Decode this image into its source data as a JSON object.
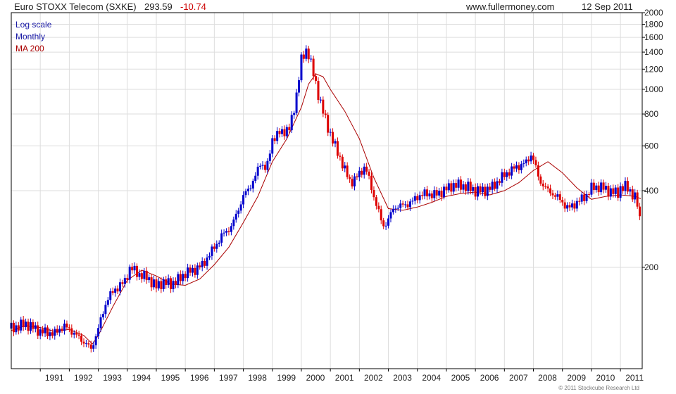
{
  "header": {
    "title": "Euro STOXX Telecom (SXKE)",
    "last_price": "293.59",
    "change": "-10.74",
    "website": "www.fullermoney.com",
    "date": "12 Sep 2011"
  },
  "legend": {
    "scale": "Log scale",
    "period": "Monthly",
    "ma": "MA 200"
  },
  "copyright": "© 2011 Stockcube Research Ltd",
  "colors": {
    "up": "#0000cc",
    "down": "#dd0000",
    "ma": "#aa0000",
    "grid": "#dddddd",
    "axis": "#000000",
    "change": "#cc0000",
    "legend_blue": "#1a1aa6",
    "legend_red": "#aa0000"
  },
  "chart_data": {
    "type": "candlestick",
    "title": "Euro STOXX Telecom (SXKE)",
    "yscale": "log",
    "ylim": [
      80,
      2000
    ],
    "xlim": [
      1990.0,
      2011.75
    ],
    "grid": true,
    "legend_placement": "top-left",
    "y_ticks": [
      200,
      400,
      600,
      800,
      1000,
      1200,
      1400,
      1600,
      1800,
      2000
    ],
    "y_tick_labels": [
      "200",
      "400",
      "600",
      "800",
      "1000",
      "1200",
      "1400",
      "1600",
      "1800",
      "2000"
    ],
    "x_ticks": [
      1991,
      1992,
      1993,
      1994,
      1995,
      1996,
      1997,
      1998,
      1999,
      2000,
      2001,
      2002,
      2003,
      2004,
      2005,
      2006,
      2007,
      2008,
      2009,
      2010,
      2011
    ],
    "x_tick_labels": [
      "1991",
      "1992",
      "1993",
      "1994",
      "1995",
      "1996",
      "1997",
      "1998",
      "1999",
      "2000",
      "2001",
      "2002",
      "2003",
      "2004",
      "2005",
      "2006",
      "2007",
      "2008",
      "2009",
      "2010",
      "2011"
    ],
    "price_series": {
      "name": "Monthly",
      "x": [
        1990.0,
        1990.5,
        1991.0,
        1991.5,
        1991.8,
        1992.1,
        1992.4,
        1992.6,
        1992.75,
        1993.0,
        1993.3,
        1993.6,
        1993.9,
        1994.1,
        1994.4,
        1994.7,
        1995.0,
        1995.2,
        1995.5,
        1995.8,
        1996.0,
        1996.3,
        1996.6,
        1997.0,
        1997.3,
        1997.6,
        1998.0,
        1998.2,
        1998.4,
        1998.6,
        1998.8,
        1999.0,
        1999.3,
        1999.6,
        1999.8,
        2000.0,
        2000.2,
        2000.5,
        2000.7,
        2000.9,
        2001.1,
        2001.3,
        2001.5,
        2001.7,
        2001.9,
        2002.2,
        2002.5,
        2002.7,
        2002.8,
        2002.95,
        2003.2,
        2003.5,
        2003.8,
        2004.0,
        2004.3,
        2004.6,
        2004.9,
        2005.2,
        2005.5,
        2005.8,
        2006.0,
        2006.3,
        2006.6,
        2006.9,
        2007.2,
        2007.5,
        2007.8,
        2007.9,
        2008.0,
        2008.2,
        2008.5,
        2008.8,
        2009.0,
        2009.2,
        2009.5,
        2009.8,
        2010.0,
        2010.3,
        2010.6,
        2010.9,
        2011.0,
        2011.2,
        2011.4,
        2011.55,
        2011.7
      ],
      "close": [
        115,
        120,
        112,
        110,
        118,
        112,
        104,
        100,
        95,
        115,
        150,
        165,
        175,
        200,
        188,
        182,
        168,
        175,
        172,
        180,
        190,
        195,
        205,
        240,
        270,
        290,
        380,
        410,
        450,
        520,
        480,
        640,
        680,
        700,
        900,
        1300,
        1450,
        1050,
        850,
        720,
        620,
        550,
        480,
        430,
        450,
        500,
        380,
        320,
        290,
        300,
        345,
        350,
        360,
        380,
        390,
        385,
        400,
        420,
        420,
        410,
        400,
        400,
        415,
        450,
        480,
        500,
        520,
        560,
        530,
        440,
        400,
        380,
        360,
        340,
        360,
        380,
        410,
        415,
        400,
        390,
        410,
        415,
        390,
        370,
        293.59
      ]
    },
    "ma_series": {
      "name": "MA 200",
      "x": [
        1990.0,
        1990.5,
        1991.0,
        1991.5,
        1992.0,
        1992.5,
        1992.8,
        1993.0,
        1993.5,
        1994.0,
        1994.5,
        1995.0,
        1995.5,
        1996.0,
        1996.5,
        1997.0,
        1997.5,
        1998.0,
        1998.5,
        1999.0,
        1999.5,
        2000.0,
        2000.25,
        2000.5,
        2000.75,
        2001.0,
        2001.5,
        2002.0,
        2002.5,
        2003.0,
        2003.5,
        2004.0,
        2004.5,
        2005.0,
        2005.5,
        2006.0,
        2006.5,
        2007.0,
        2007.5,
        2008.0,
        2008.5,
        2009.0,
        2009.5,
        2010.0,
        2010.5,
        2011.0,
        2011.5,
        2011.7
      ],
      "y": [
        113,
        118,
        116,
        112,
        114,
        108,
        100,
        108,
        140,
        178,
        195,
        185,
        172,
        170,
        180,
        205,
        240,
        300,
        380,
        520,
        640,
        850,
        1050,
        1150,
        1120,
        1000,
        820,
        640,
        450,
        340,
        335,
        345,
        360,
        380,
        390,
        395,
        385,
        400,
        430,
        480,
        520,
        470,
        410,
        370,
        380,
        385,
        380,
        372
      ]
    }
  }
}
